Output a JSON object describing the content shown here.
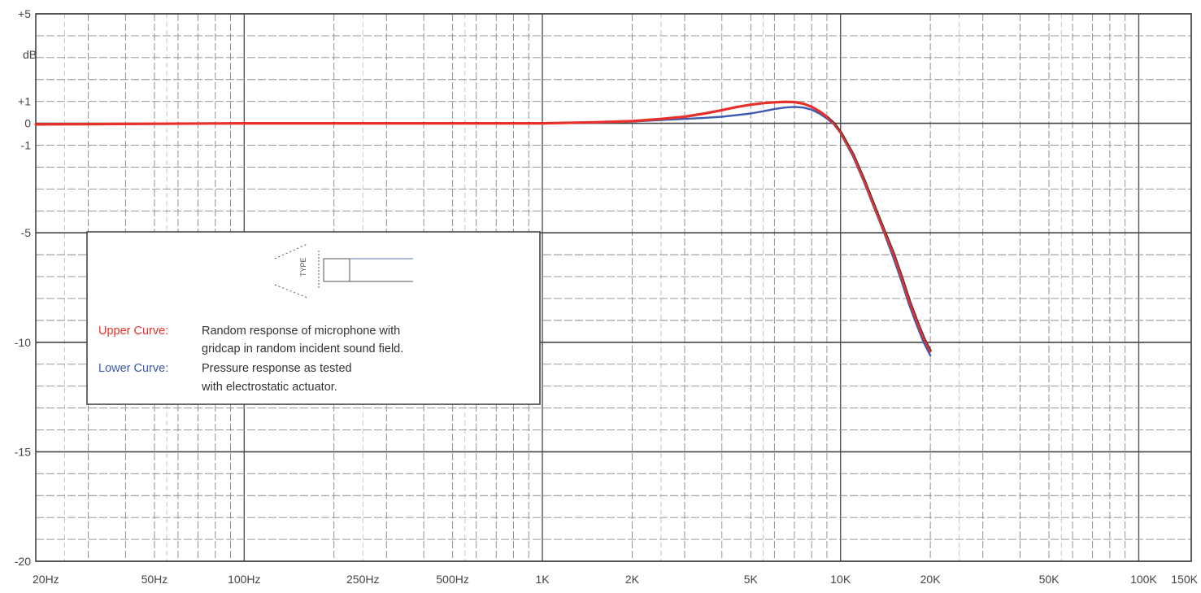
{
  "chart_data": {
    "type": "line",
    "title": "",
    "xscale": "log",
    "xlim": [
      20,
      150000
    ],
    "ylim": [
      -20,
      5
    ],
    "ylabel": "dB",
    "grid": true,
    "x_tick_labels": [
      {
        "x": 20,
        "label": "20Hz"
      },
      {
        "x": 50,
        "label": "50Hz"
      },
      {
        "x": 100,
        "label": "100Hz"
      },
      {
        "x": 250,
        "label": "250Hz"
      },
      {
        "x": 500,
        "label": "500Hz"
      },
      {
        "x": 1000,
        "label": "1K"
      },
      {
        "x": 2000,
        "label": "2K"
      },
      {
        "x": 5000,
        "label": "5K"
      },
      {
        "x": 10000,
        "label": "10K"
      },
      {
        "x": 20000,
        "label": "20K"
      },
      {
        "x": 50000,
        "label": "50K"
      },
      {
        "x": 100000,
        "label": "100K"
      },
      {
        "x": 150000,
        "label": "150K"
      }
    ],
    "y_tick_labels": [
      {
        "y": 5,
        "label": "+5"
      },
      {
        "y": 1,
        "label": "+1"
      },
      {
        "y": 0,
        "label": "0"
      },
      {
        "y": -1,
        "label": "-1"
      },
      {
        "y": -5,
        "label": "-5"
      },
      {
        "y": -10,
        "label": "-10"
      },
      {
        "y": -15,
        "label": "-15"
      },
      {
        "y": -20,
        "label": "-20"
      }
    ],
    "series": [
      {
        "name": "Upper Curve",
        "color": "#e8302a",
        "x": [
          20,
          100,
          500,
          1000,
          1500,
          2000,
          2500,
          3000,
          3500,
          4000,
          4500,
          5000,
          5500,
          6000,
          6500,
          7000,
          7500,
          8000,
          8500,
          9000,
          9500,
          10000,
          11000,
          12000,
          13000,
          14000,
          15000,
          16000,
          17000,
          18000,
          19000,
          20000
        ],
        "y": [
          -0.05,
          0,
          0,
          0,
          0.05,
          0.1,
          0.2,
          0.3,
          0.45,
          0.6,
          0.75,
          0.85,
          0.92,
          0.96,
          0.98,
          0.97,
          0.9,
          0.75,
          0.55,
          0.3,
          0.0,
          -0.4,
          -1.4,
          -2.6,
          -3.8,
          -4.9,
          -5.9,
          -7.0,
          -8.1,
          -9.0,
          -9.8,
          -10.4
        ]
      },
      {
        "name": "Lower Curve",
        "color": "#3c5ab0",
        "x": [
          20,
          100,
          500,
          1000,
          1500,
          2000,
          2500,
          3000,
          3500,
          4000,
          4500,
          5000,
          5500,
          6000,
          6500,
          7000,
          7500,
          8000,
          8500,
          9000,
          9500,
          10000,
          11000,
          12000,
          13000,
          14000,
          15000,
          16000,
          17000,
          18000,
          19000,
          20000
        ],
        "y": [
          -0.05,
          0,
          0,
          0,
          0.03,
          0.08,
          0.15,
          0.2,
          0.25,
          0.3,
          0.38,
          0.45,
          0.55,
          0.65,
          0.72,
          0.75,
          0.72,
          0.62,
          0.45,
          0.22,
          -0.05,
          -0.45,
          -1.5,
          -2.7,
          -3.9,
          -5.0,
          -6.1,
          -7.2,
          -8.3,
          -9.2,
          -10.0,
          -10.6
        ]
      }
    ],
    "legend": {
      "placement": "left-middle",
      "upper_label": "Upper Curve:",
      "upper_text_1": "Random response of microphone with",
      "upper_text_2": "gridcap in random incident sound field.",
      "lower_label": "Lower Curve:",
      "lower_text_1": "Pressure response as tested",
      "lower_text_2": "with electrostatic actuator."
    }
  }
}
